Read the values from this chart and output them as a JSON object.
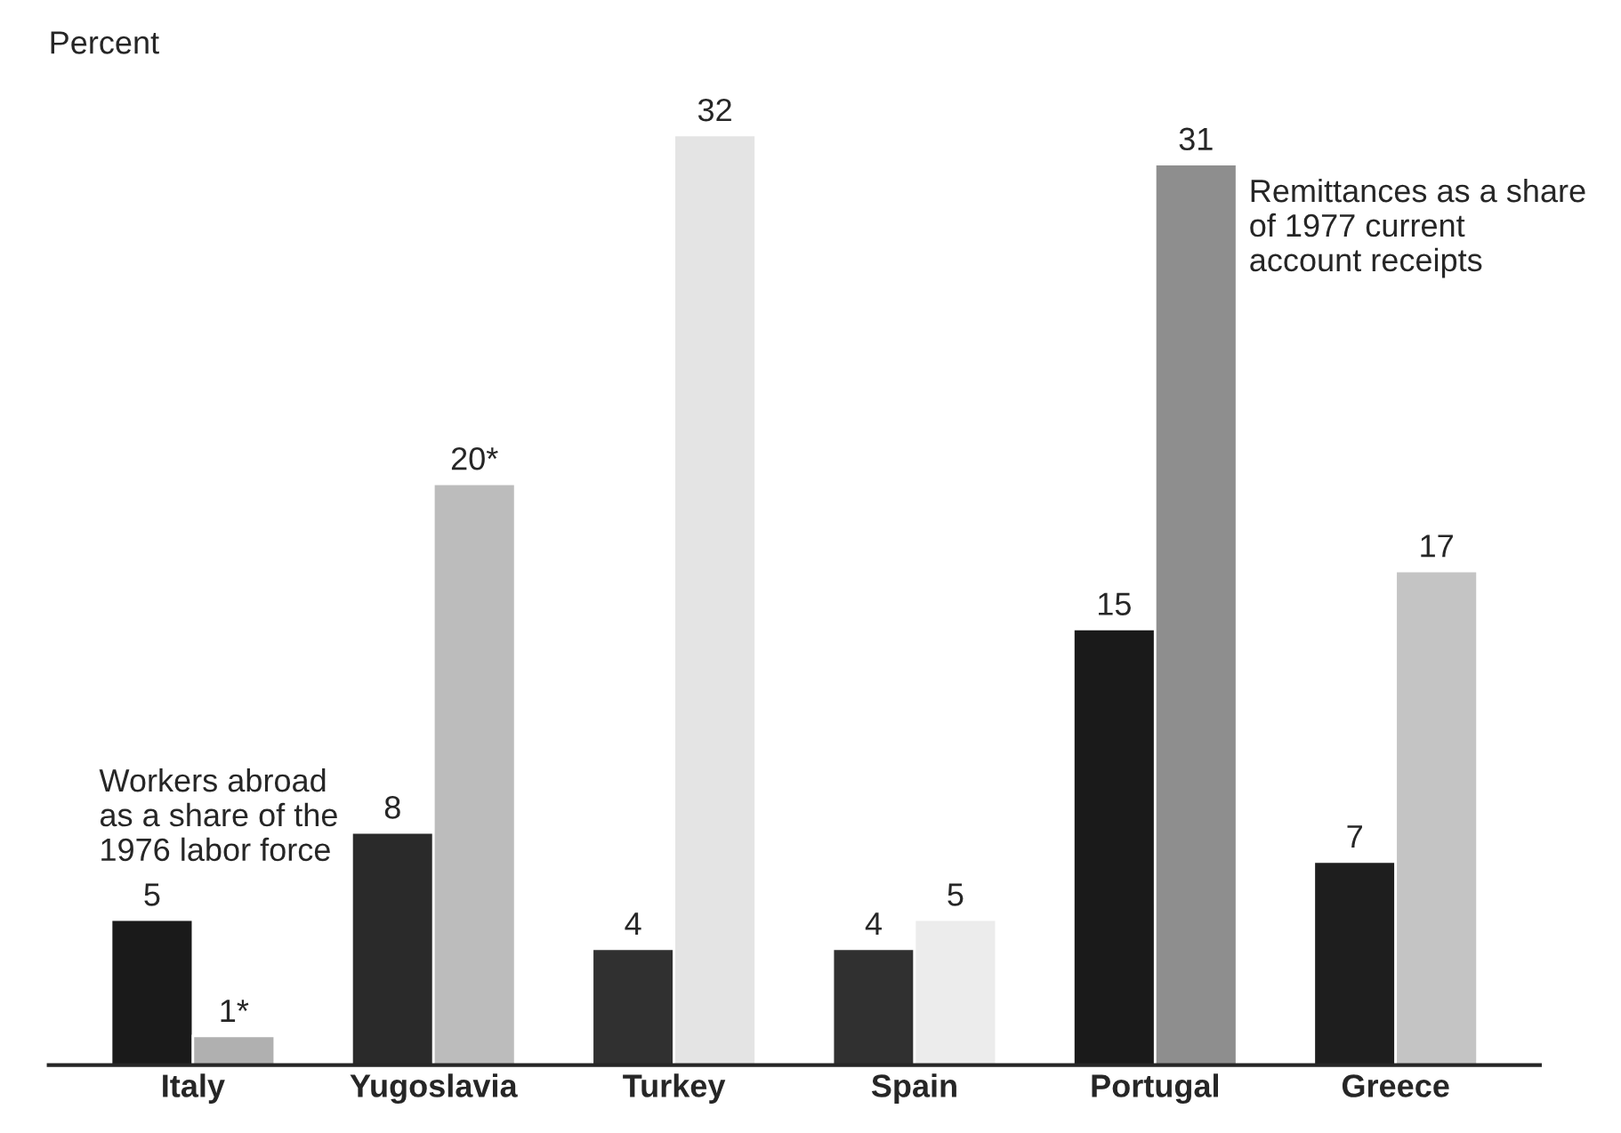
{
  "chart_data": {
    "type": "bar",
    "ylabel": "Percent",
    "categories": [
      "Italy",
      "Yugoslavia",
      "Turkey",
      "Spain",
      "Portugal",
      "Greece"
    ],
    "series": [
      {
        "name": "Workers abroad\nas a share of the\n1976 labor force",
        "colors": [
          "#1a1a1a",
          "#2a2a2a",
          "#303030",
          "#303030",
          "#1a1a1a",
          "#1e1e1e"
        ],
        "values": [
          5,
          8,
          4,
          4,
          15,
          7
        ],
        "value_labels": [
          "5",
          "8",
          "4",
          "4",
          "15",
          "7"
        ]
      },
      {
        "name": "Remittances as a share\nof 1977 current\naccount receipts",
        "colors": [
          "#b0b0b0",
          "#bcbcbc",
          "#e4e4e4",
          "#ececec",
          "#8e8e8e",
          "#c4c4c4"
        ],
        "values": [
          1,
          20,
          32,
          5,
          31,
          17
        ],
        "value_labels": [
          "1*",
          "20*",
          "32",
          "5",
          "31",
          "17"
        ]
      }
    ],
    "grid": false,
    "legend": false
  }
}
